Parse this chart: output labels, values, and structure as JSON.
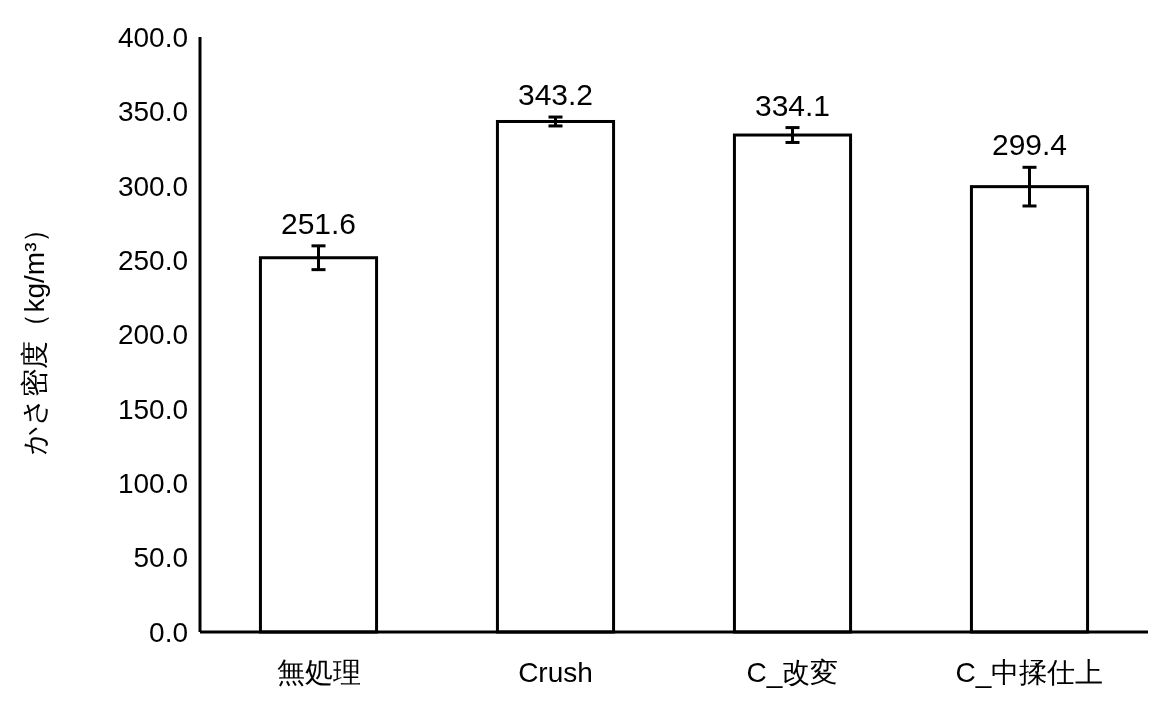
{
  "chart_data": {
    "type": "bar",
    "ylabel": "かさ密度（kg/m³）",
    "categories": [
      "無処理",
      "Crush",
      "C_改変",
      "C_中揉仕上"
    ],
    "values": [
      251.6,
      343.2,
      334.1,
      299.4
    ],
    "errors": [
      8,
      3,
      5,
      13
    ],
    "color": "#ffffff",
    "data_labels": true,
    "ylim": [
      0,
      400
    ],
    "yticks": [
      {
        "value": 0,
        "label": "0.0"
      },
      {
        "value": 50,
        "label": "50.0"
      },
      {
        "value": 100,
        "label": "100.0"
      },
      {
        "value": 150,
        "label": "150.0"
      },
      {
        "value": 200,
        "label": "200.0"
      },
      {
        "value": 250,
        "label": "250.0"
      },
      {
        "value": 300,
        "label": "300.0"
      },
      {
        "value": 350,
        "label": "350.0"
      },
      {
        "value": 400,
        "label": "400.0"
      }
    ],
    "grid": false
  }
}
